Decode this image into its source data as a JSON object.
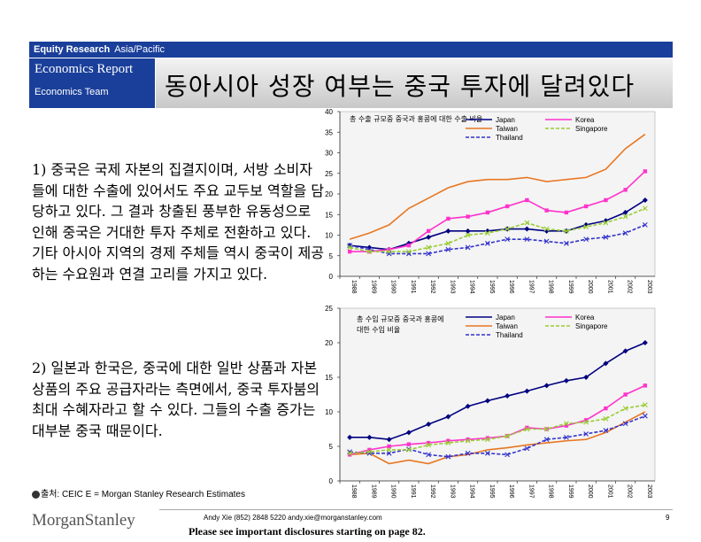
{
  "header": {
    "left": "Equity Research",
    "right": "Asia/Pacific",
    "report_title": "Economics Report",
    "team": "Economics Team",
    "headline": "동아시아 성장 여부는 중국 투자에 달려있다"
  },
  "paragraphs": [
    "1) 중국은 국제 자본의 집결지이며, 서방 소비자들에 대한 수출에 있어서도 주요 교두보 역할을 담당하고 있다. 그 결과 창출된 풍부한 유동성으로 인해 중국은 거대한 투자 주체로 전환하고 있다. 기타 아시아 지역의 경제 주체들 역시 중국이 제공하는 수요원과 연결 고리를 가지고 있다.",
    "2) 일본과 한국은, 중국에 대한 일반 상품과 자본 상품의 주요 공급자라는 측면에서, 중국 투자붐의 최대 수혜자라고 할 수 있다. 그들의 수출 증가는 대부분 중국 때문이다."
  ],
  "source": "출처: CEIC E = Morgan Stanley Research Estimates",
  "footer": {
    "logo": "MorganStanley",
    "contact": "Andy Xie (852) 2848 5220  andy.xie@morganstanley.com",
    "disclosure": "Please see important disclosures starting on page 82.",
    "page": "9"
  },
  "colors": {
    "brand_blue": "#1a3f9a",
    "japan": "#000080",
    "korea": "#ff33cc",
    "taiwan": "#e87722",
    "singapore": "#99cc33",
    "thailand": "#3333cc"
  },
  "chart_data": [
    {
      "type": "line",
      "title": "총 수출 규모중 중국과 홍콩에 대한 수출 비율",
      "x": [
        "1988",
        "1989",
        "1990",
        "1991",
        "1992",
        "1993",
        "1994",
        "1995",
        "1996",
        "1997",
        "1998",
        "1999",
        "2000",
        "2001",
        "2002",
        "2003"
      ],
      "ylim": [
        0,
        40
      ],
      "yticks": [
        0,
        5,
        10,
        15,
        20,
        25,
        30,
        35,
        40
      ],
      "legend": "top-right",
      "series": [
        {
          "name": "Japan",
          "values": [
            7.5,
            7.0,
            6.5,
            8.0,
            9.5,
            11.0,
            11.0,
            11.0,
            11.5,
            11.5,
            11.0,
            11.0,
            12.5,
            13.5,
            15.5,
            18.5
          ]
        },
        {
          "name": "Taiwan",
          "values": [
            9.0,
            10.5,
            12.5,
            16.5,
            19.0,
            21.5,
            23.0,
            23.5,
            23.5,
            24.0,
            23.0,
            23.5,
            24.0,
            26.0,
            31.0,
            34.5
          ]
        },
        {
          "name": "Thailand",
          "values": [
            7.5,
            6.5,
            5.5,
            5.5,
            5.5,
            6.5,
            7.0,
            8.0,
            9.0,
            9.0,
            8.5,
            8.0,
            9.0,
            9.5,
            10.5,
            12.5
          ]
        },
        {
          "name": "Korea",
          "values": [
            6.0,
            6.0,
            6.5,
            7.5,
            11.0,
            14.0,
            14.5,
            15.5,
            17.0,
            18.5,
            16.0,
            15.5,
            17.0,
            18.5,
            21.0,
            25.5
          ]
        },
        {
          "name": "Singapore",
          "values": [
            7.0,
            6.0,
            6.0,
            6.0,
            7.0,
            8.0,
            10.0,
            10.5,
            11.5,
            13.0,
            11.5,
            11.0,
            12.0,
            13.0,
            14.5,
            16.5
          ]
        }
      ]
    },
    {
      "type": "line",
      "title": "총 수입 규모중 중국과 홍콩에 대한 수입 비율",
      "x": [
        "1988",
        "1989",
        "1990",
        "1991",
        "1992",
        "1993",
        "1994",
        "1995",
        "1996",
        "1997",
        "1998",
        "1999",
        "2000",
        "2001",
        "2002",
        "2003"
      ],
      "ylim": [
        0,
        25
      ],
      "yticks": [
        0,
        5,
        10,
        15,
        20,
        25
      ],
      "legend": "top-right",
      "series": [
        {
          "name": "Japan",
          "values": [
            6.3,
            6.3,
            6.0,
            7.0,
            8.2,
            9.3,
            10.8,
            11.6,
            12.3,
            13.0,
            13.8,
            14.5,
            15.0,
            17.0,
            18.8,
            20.0
          ]
        },
        {
          "name": "Taiwan",
          "values": [
            3.8,
            4.0,
            2.5,
            3.0,
            2.5,
            3.5,
            3.8,
            4.5,
            4.8,
            5.2,
            5.5,
            5.8,
            6.0,
            7.0,
            8.5,
            10.0
          ]
        },
        {
          "name": "Thailand",
          "values": [
            4.2,
            4.0,
            4.0,
            4.6,
            3.8,
            3.5,
            4.0,
            4.0,
            3.8,
            4.7,
            6.0,
            6.3,
            6.8,
            7.3,
            8.3,
            9.4
          ]
        },
        {
          "name": "Korea",
          "values": [
            3.8,
            4.5,
            5.0,
            5.3,
            5.5,
            5.8,
            6.0,
            6.2,
            6.5,
            7.7,
            7.5,
            8.0,
            8.8,
            10.5,
            12.5,
            13.8
          ]
        },
        {
          "name": "Singapore",
          "values": [
            4.0,
            4.2,
            4.5,
            4.5,
            5.2,
            5.5,
            5.8,
            6.0,
            6.5,
            7.5,
            7.5,
            8.3,
            8.5,
            9.0,
            10.5,
            11.0
          ]
        }
      ]
    }
  ]
}
